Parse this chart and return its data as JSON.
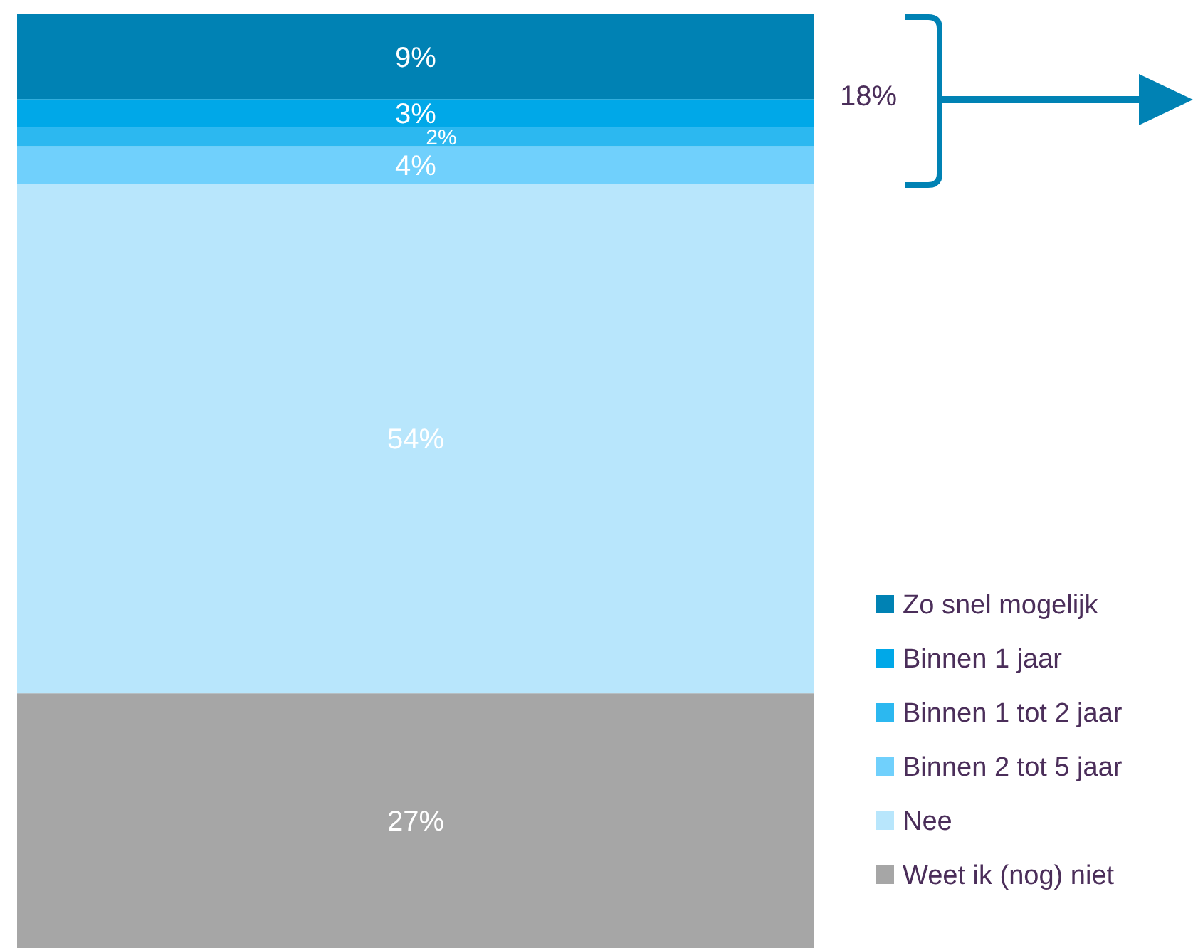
{
  "chart_data": {
    "type": "bar",
    "stacked": true,
    "categories": [
      null
    ],
    "legend": "bottom right",
    "annotations": [
      "18%"
    ],
    "series": [
      {
        "name": "Weet ik (nog) niet",
        "color": "#a6a6a6",
        "values": [
          27
        ],
        "value_labels": [
          "27%"
        ]
      },
      {
        "name": "Nee",
        "color": "#b8e6fc",
        "values": [
          54
        ],
        "value_labels": [
          "54%"
        ]
      },
      {
        "name": "Binnen 2 tot 5 jaar",
        "color": "#70d0fc",
        "values": [
          4
        ],
        "value_labels": [
          "4%"
        ]
      },
      {
        "name": "Binnen 1 tot 2 jaar",
        "color": "#2cb8f0",
        "values": [
          2
        ],
        "value_labels": [
          "2%"
        ]
      },
      {
        "name": "Binnen 1 jaar",
        "color": "#00a8e8",
        "values": [
          3
        ],
        "value_labels": [
          "3%"
        ]
      },
      {
        "name": "Zo snel mogelijk",
        "color": "#0082b4",
        "values": [
          9
        ],
        "value_labels": [
          "9%"
        ]
      }
    ]
  }
}
